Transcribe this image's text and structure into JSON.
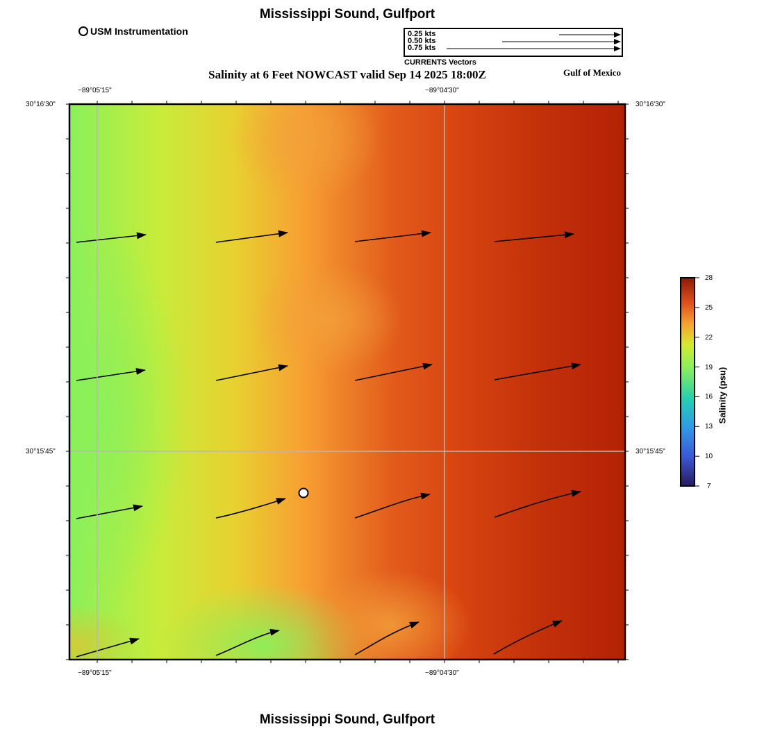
{
  "header": {
    "title": "Mississippi Sound, Gulfport",
    "subtitle": "Salinity at 6 Feet NOWCAST valid Sep 14 2025 18:00Z",
    "region": "Gulf of Mexico",
    "station_legend": "USM Instrumentation"
  },
  "footer": {
    "title": "Mississippi Sound, Gulfport"
  },
  "current_legend": {
    "caption": "CURRENTS Vectors",
    "entries": [
      {
        "label": "0.25 kts",
        "speed": 0.25
      },
      {
        "label": "0.50 kts",
        "speed": 0.5
      },
      {
        "label": "0.75 kts",
        "speed": 0.75
      }
    ]
  },
  "axes": {
    "lon_ticks": [
      "−89°05'15\"",
      "−89°04'30\""
    ],
    "lat_ticks": [
      "30°16'30\"",
      "30°15'45\""
    ]
  },
  "colorbar": {
    "label": "Salinity (psu)",
    "ticks": [
      "28",
      "25",
      "22",
      "19",
      "16",
      "13",
      "10",
      "7"
    ],
    "min": 7,
    "max": 28
  },
  "colors": {
    "green": "#8af05a",
    "yellow_green": "#c8ec3a",
    "orange": "#f7a032",
    "red_orange": "#dc4614",
    "dark_red": "#ba2408"
  },
  "station": {
    "name": "USM Instrumentation",
    "marker": "open-circle"
  }
}
